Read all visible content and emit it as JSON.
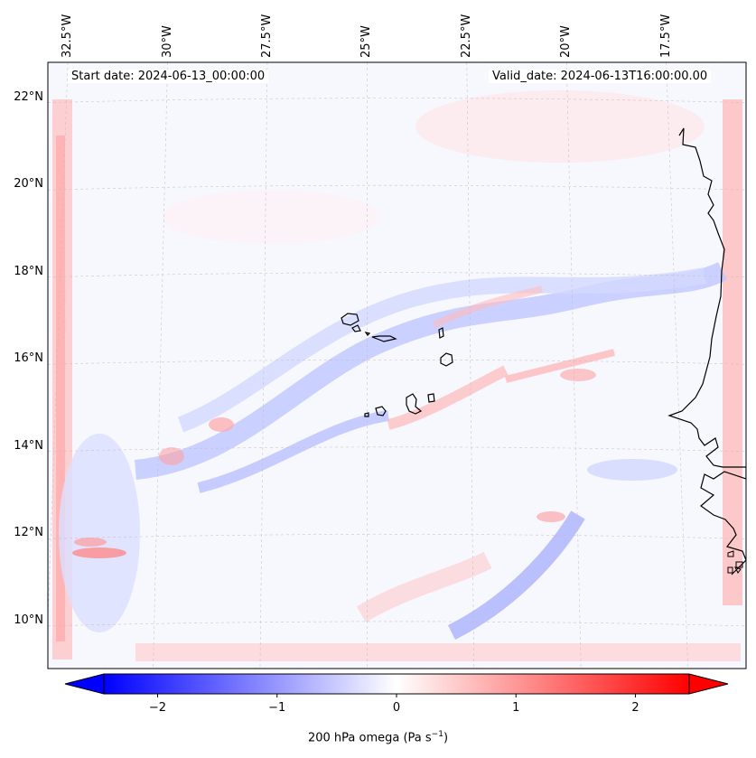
{
  "map": {
    "start_date": "Start date: 2024-06-13_00:00:00",
    "valid_date": "Valid_date: 2024-06-13T16:00:00.00",
    "lon_labels": [
      "32.5°W",
      "30°W",
      "27.5°W",
      "25°W",
      "22.5°W",
      "20°W",
      "17.5°W"
    ],
    "lat_labels": [
      "22°N",
      "20°N",
      "18°N",
      "16°N",
      "14°N",
      "12°N",
      "10°N"
    ],
    "lat_values": [
      22,
      20,
      18,
      16,
      14,
      12,
      10
    ],
    "lon_values": [
      -32.5,
      -30,
      -27.5,
      -25,
      -22.5,
      -20,
      -17.5
    ],
    "extent": {
      "lon_min": -33.0,
      "lon_max": -15.5,
      "lat_min": 8.9,
      "lat_max": 22.8
    }
  },
  "colorbar": {
    "label_text": "200 hPa omega (Pa s",
    "label_sup": "−1",
    "label_tail": ")",
    "ticks": [
      "−2",
      "−1",
      "0",
      "1",
      "2"
    ],
    "tick_values": [
      -2,
      -1,
      0,
      1,
      2
    ],
    "range": [
      -2.75,
      2.75
    ],
    "colormap": "bwr",
    "colors": {
      "negative": "#0000ff",
      "zero": "#ffffff",
      "positive": "#ff0000"
    }
  }
}
